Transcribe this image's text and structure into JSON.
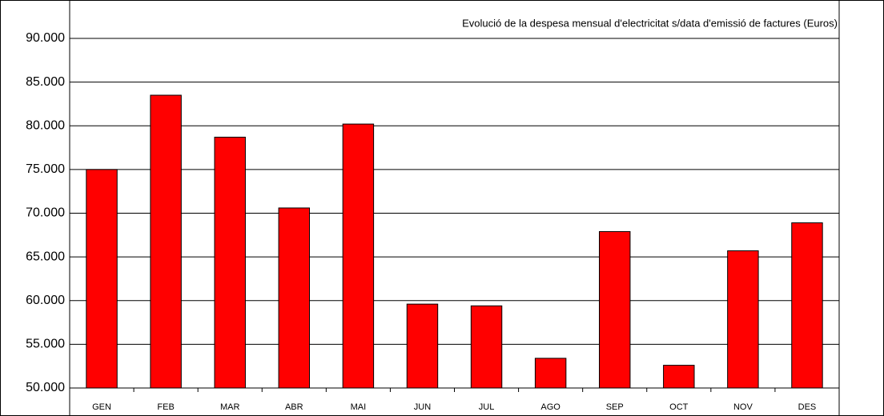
{
  "chart_data": {
    "type": "bar",
    "title": "Evolució de la despesa mensual d'electricitat s/data d'emissió de factures (Euros)",
    "categories": [
      "GEN",
      "FEB",
      "MAR",
      "ABR",
      "MAI",
      "JUN",
      "JUL",
      "AGO",
      "SEP",
      "OCT",
      "NOV",
      "DES"
    ],
    "values": [
      75000,
      83500,
      78700,
      70600,
      80200,
      59600,
      59400,
      53400,
      67900,
      52600,
      65700,
      68900
    ],
    "color": "#ff0000",
    "ylim": [
      50000,
      90000
    ],
    "yticks": [
      {
        "value": 50000,
        "label": "50.000"
      },
      {
        "value": 55000,
        "label": "55.000"
      },
      {
        "value": 60000,
        "label": "60.000"
      },
      {
        "value": 65000,
        "label": "65.000"
      },
      {
        "value": 70000,
        "label": "70.000"
      },
      {
        "value": 75000,
        "label": "75.000"
      },
      {
        "value": 80000,
        "label": "80.000"
      },
      {
        "value": 85000,
        "label": "85.000"
      },
      {
        "value": 90000,
        "label": "90.000"
      }
    ],
    "grid": true
  }
}
